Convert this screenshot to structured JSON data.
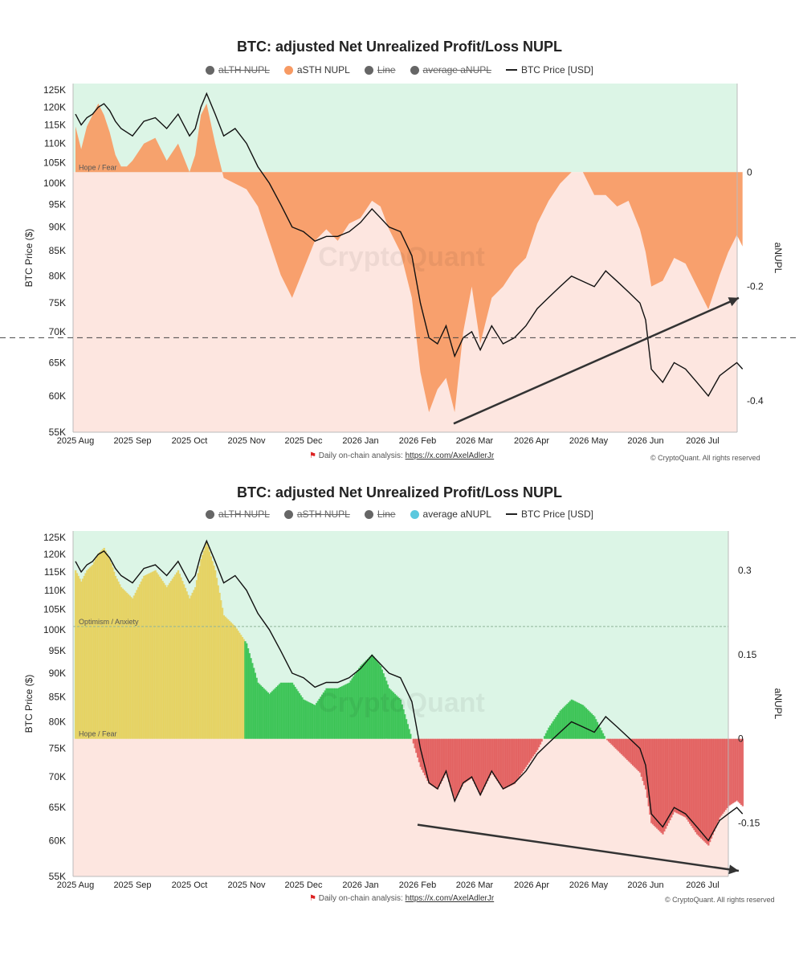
{
  "colors": {
    "green_zone": "#dcf5e6",
    "red_zone": "#fde6e0",
    "orange": "#f79a63",
    "gold": "#e6cf57",
    "green_bar": "#2fbf4a",
    "red_bar": "#e05757",
    "teal": "#5bc8de",
    "line": "#111111",
    "arrow": "#333333"
  },
  "icons": {
    "flag": "red-flag-icon"
  },
  "footer": {
    "daily_label": "Daily on-chain analysis:",
    "link": "https://x.com/AxelAdlerJr",
    "copyright": "© CryptoQuant. All rights reserved"
  },
  "watermark": "CryptoQuant",
  "chart_data": [
    {
      "type": "area",
      "title": "BTC: adjusted Net Unrealized Profit/Loss NUPL",
      "legend": [
        {
          "label": "aLTH NUPL",
          "color": "#666666",
          "enabled": false
        },
        {
          "label": "aSTH NUPL",
          "color": "#f79a63",
          "enabled": true
        },
        {
          "label": "Line",
          "color": "#666666",
          "enabled": false
        },
        {
          "label": "average aNUPL",
          "color": "#666666",
          "enabled": false
        },
        {
          "label": "BTC Price [USD]",
          "color": "#111111",
          "enabled": true,
          "style": "line"
        }
      ],
      "xlabel": "",
      "x_ticks": [
        "2025 Aug",
        "2025 Sep",
        "2025 Oct",
        "2025 Nov",
        "2025 Dec",
        "2026 Jan",
        "2026 Feb",
        "2026 Mar",
        "2026 Apr",
        "2026 May",
        "2026 Jun",
        "2026 Jul"
      ],
      "ylabel_left": "BTC Price ($)",
      "ylabel_right": "aNUPL",
      "y_left_ticks": [
        "125K",
        "120K",
        "115K",
        "110K",
        "105K",
        "100K",
        "95K",
        "90K",
        "85K",
        "80K",
        "75K",
        "70K",
        "65K",
        "60K",
        "55K"
      ],
      "y_left_scale": "log",
      "y_left_range": [
        55000,
        127000
      ],
      "y_right_ticks": [
        "0",
        "-0.2",
        "-0.4"
      ],
      "y_right_range": [
        -0.455,
        0.155
      ],
      "zone_label": "Hope / Fear",
      "threshold_price": 69000,
      "arrow": {
        "from": [
          "2026 Feb 20",
          -0.44
        ],
        "to": [
          "2026 Jul 20",
          -0.22
        ]
      },
      "series": [
        {
          "name": "BTC Price [USD]",
          "x": [
            0,
            0.1,
            0.2,
            0.3,
            0.4,
            0.5,
            0.6,
            0.7,
            0.8,
            0.9,
            1.0,
            1.2,
            1.4,
            1.6,
            1.8,
            2.0,
            2.1,
            2.2,
            2.3,
            2.45,
            2.6,
            2.8,
            3.0,
            3.2,
            3.4,
            3.6,
            3.8,
            4.0,
            4.2,
            4.4,
            4.6,
            4.8,
            5.0,
            5.2,
            5.35,
            5.5,
            5.7,
            5.9,
            6.05,
            6.2,
            6.35,
            6.5,
            6.65,
            6.8,
            6.95,
            7.1,
            7.3,
            7.5,
            7.7,
            7.9,
            8.1,
            8.3,
            8.5,
            8.7,
            8.9,
            9.1,
            9.3,
            9.5,
            9.7,
            9.9,
            10.0,
            10.1,
            10.3,
            10.5,
            10.7,
            10.9,
            11.1,
            11.3,
            11.45,
            11.6,
            11.7
          ],
          "values": [
            118000,
            115000,
            117000,
            118000,
            120000,
            121000,
            119000,
            116000,
            114000,
            113000,
            112000,
            116000,
            117000,
            114000,
            118000,
            112000,
            114000,
            120000,
            124000,
            118000,
            112000,
            114000,
            110000,
            104000,
            100000,
            95000,
            90000,
            89000,
            87000,
            88000,
            88000,
            89000,
            91000,
            94000,
            92000,
            90000,
            89000,
            84000,
            75000,
            69000,
            68000,
            71000,
            66000,
            69000,
            70000,
            67000,
            71000,
            68000,
            69000,
            71000,
            74000,
            76000,
            78000,
            80000,
            79000,
            78000,
            81000,
            79000,
            77000,
            75000,
            72000,
            64000,
            62000,
            65000,
            64000,
            62000,
            60000,
            63000,
            64000,
            65000,
            64000
          ]
        },
        {
          "name": "aSTH NUPL",
          "x": [
            0,
            0.1,
            0.2,
            0.3,
            0.4,
            0.5,
            0.6,
            0.7,
            0.8,
            0.9,
            1.0,
            1.2,
            1.4,
            1.6,
            1.8,
            2.0,
            2.1,
            2.2,
            2.3,
            2.45,
            2.6,
            2.8,
            3.0,
            3.2,
            3.4,
            3.6,
            3.8,
            4.0,
            4.2,
            4.4,
            4.6,
            4.8,
            5.0,
            5.2,
            5.35,
            5.5,
            5.7,
            5.9,
            6.05,
            6.2,
            6.35,
            6.5,
            6.65,
            6.8,
            6.95,
            7.1,
            7.3,
            7.5,
            7.7,
            7.9,
            8.1,
            8.3,
            8.5,
            8.7,
            8.9,
            9.1,
            9.3,
            9.5,
            9.7,
            9.9,
            10.0,
            10.1,
            10.3,
            10.5,
            10.7,
            10.9,
            11.1,
            11.3,
            11.45,
            11.6,
            11.7
          ],
          "values": [
            0.08,
            0.04,
            0.08,
            0.1,
            0.12,
            0.1,
            0.07,
            0.03,
            0.01,
            0.01,
            0.02,
            0.05,
            0.06,
            0.02,
            0.05,
            0.0,
            0.03,
            0.1,
            0.12,
            0.05,
            -0.01,
            -0.02,
            -0.03,
            -0.06,
            -0.12,
            -0.18,
            -0.22,
            -0.17,
            -0.12,
            -0.1,
            -0.12,
            -0.09,
            -0.08,
            -0.05,
            -0.06,
            -0.1,
            -0.14,
            -0.22,
            -0.35,
            -0.42,
            -0.38,
            -0.36,
            -0.42,
            -0.28,
            -0.2,
            -0.3,
            -0.22,
            -0.2,
            -0.17,
            -0.15,
            -0.09,
            -0.05,
            -0.02,
            0.0,
            0.0,
            -0.04,
            -0.04,
            -0.06,
            -0.05,
            -0.1,
            -0.14,
            -0.2,
            -0.19,
            -0.15,
            -0.16,
            -0.2,
            -0.24,
            -0.18,
            -0.14,
            -0.11,
            -0.13
          ]
        }
      ]
    },
    {
      "type": "bar",
      "title": "BTC: adjusted Net Unrealized Profit/Loss NUPL",
      "legend": [
        {
          "label": "aLTH NUPL",
          "color": "#666666",
          "enabled": false
        },
        {
          "label": "aSTH NUPL",
          "color": "#666666",
          "enabled": false
        },
        {
          "label": "Line",
          "color": "#666666",
          "enabled": false
        },
        {
          "label": "average aNUPL",
          "color": "#5bc8de",
          "enabled": true
        },
        {
          "label": "BTC Price [USD]",
          "color": "#111111",
          "enabled": true,
          "style": "line"
        }
      ],
      "xlabel": "",
      "x_ticks": [
        "2025 Aug",
        "2025 Sep",
        "2025 Oct",
        "2025 Nov",
        "2025 Dec",
        "2026 Jan",
        "2026 Feb",
        "2026 Mar",
        "2026 Apr",
        "2026 May",
        "2026 Jun",
        "2026 Jul"
      ],
      "ylabel_left": "BTC Price ($)",
      "ylabel_right": "aNUPL",
      "y_left_ticks": [
        "125K",
        "120K",
        "115K",
        "110K",
        "105K",
        "100K",
        "95K",
        "90K",
        "85K",
        "80K",
        "75K",
        "70K",
        "65K",
        "60K",
        "55K"
      ],
      "y_left_scale": "log",
      "y_left_range": [
        55000,
        127000
      ],
      "y_right_ticks": [
        "0.3",
        "0.15",
        "0",
        "-0.15"
      ],
      "y_right_range": [
        -0.245,
        0.37
      ],
      "zone_labels": [
        "Optimism / Anxiety",
        "Hope / Fear"
      ],
      "optimism_level": 0.2,
      "arrow": {
        "from": [
          "2026 Jan 31",
          -0.153
        ],
        "to": [
          "2026 Jul 20",
          -0.235
        ]
      },
      "series": [
        {
          "name": "BTC Price [USD]",
          "x": [
            0,
            0.1,
            0.2,
            0.3,
            0.4,
            0.5,
            0.6,
            0.7,
            0.8,
            0.9,
            1.0,
            1.2,
            1.4,
            1.6,
            1.8,
            2.0,
            2.1,
            2.2,
            2.3,
            2.45,
            2.6,
            2.8,
            3.0,
            3.2,
            3.4,
            3.6,
            3.8,
            4.0,
            4.2,
            4.4,
            4.6,
            4.8,
            5.0,
            5.2,
            5.35,
            5.5,
            5.7,
            5.9,
            6.05,
            6.2,
            6.35,
            6.5,
            6.65,
            6.8,
            6.95,
            7.1,
            7.3,
            7.5,
            7.7,
            7.9,
            8.1,
            8.3,
            8.5,
            8.7,
            8.9,
            9.1,
            9.3,
            9.5,
            9.7,
            9.9,
            10.0,
            10.1,
            10.3,
            10.5,
            10.7,
            10.9,
            11.1,
            11.3,
            11.45,
            11.6,
            11.7
          ],
          "values": [
            118000,
            115000,
            117000,
            118000,
            120000,
            121000,
            119000,
            116000,
            114000,
            113000,
            112000,
            116000,
            117000,
            114000,
            118000,
            112000,
            114000,
            120000,
            124000,
            118000,
            112000,
            114000,
            110000,
            104000,
            100000,
            95000,
            90000,
            89000,
            87000,
            88000,
            88000,
            89000,
            91000,
            94000,
            92000,
            90000,
            89000,
            84000,
            75000,
            69000,
            68000,
            71000,
            66000,
            69000,
            70000,
            67000,
            71000,
            68000,
            69000,
            71000,
            74000,
            76000,
            78000,
            80000,
            79000,
            78000,
            81000,
            79000,
            77000,
            75000,
            72000,
            64000,
            62000,
            65000,
            64000,
            62000,
            60000,
            63000,
            64000,
            65000,
            64000
          ]
        },
        {
          "name": "average aNUPL",
          "x": [
            0,
            0.1,
            0.2,
            0.3,
            0.4,
            0.5,
            0.6,
            0.7,
            0.8,
            0.9,
            1.0,
            1.2,
            1.4,
            1.6,
            1.8,
            2.0,
            2.1,
            2.2,
            2.3,
            2.45,
            2.6,
            2.8,
            3.0,
            3.2,
            3.4,
            3.6,
            3.8,
            4.0,
            4.2,
            4.4,
            4.6,
            4.8,
            5.0,
            5.2,
            5.35,
            5.5,
            5.7,
            5.9,
            6.05,
            6.2,
            6.35,
            6.5,
            6.65,
            6.8,
            6.95,
            7.1,
            7.3,
            7.5,
            7.7,
            7.9,
            8.1,
            8.3,
            8.5,
            8.7,
            8.9,
            9.1,
            9.3,
            9.5,
            9.7,
            9.9,
            10.0,
            10.1,
            10.3,
            10.5,
            10.7,
            10.9,
            11.1,
            11.3,
            11.45,
            11.6,
            11.7
          ],
          "values": [
            0.3,
            0.28,
            0.3,
            0.31,
            0.33,
            0.34,
            0.32,
            0.29,
            0.27,
            0.26,
            0.25,
            0.29,
            0.3,
            0.27,
            0.3,
            0.25,
            0.27,
            0.32,
            0.35,
            0.3,
            0.22,
            0.2,
            0.17,
            0.1,
            0.08,
            0.1,
            0.1,
            0.07,
            0.06,
            0.09,
            0.09,
            0.1,
            0.13,
            0.15,
            0.13,
            0.09,
            0.07,
            0.0,
            -0.05,
            -0.08,
            -0.09,
            -0.06,
            -0.11,
            -0.08,
            -0.07,
            -0.1,
            -0.06,
            -0.09,
            -0.08,
            -0.05,
            -0.02,
            0.02,
            0.05,
            0.07,
            0.06,
            0.04,
            0.0,
            -0.02,
            -0.04,
            -0.06,
            -0.09,
            -0.15,
            -0.17,
            -0.13,
            -0.14,
            -0.17,
            -0.19,
            -0.14,
            -0.12,
            -0.11,
            -0.12
          ]
        }
      ]
    }
  ]
}
